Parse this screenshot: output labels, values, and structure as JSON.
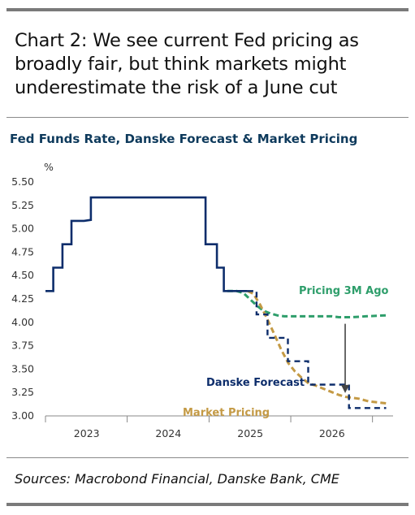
{
  "header": {
    "title": "Chart 2: We see current Fed pricing as broadly fair, but think markets might underestimate the risk of a June cut"
  },
  "footer": {
    "sources": "Sources: Macrobond Financial, Danske Bank, CME"
  },
  "colors": {
    "fed_funds": "#0d2d6b",
    "market_pricing": "#c49a45",
    "pricing_3m_ago": "#2e9e6b",
    "arrow": "#444444"
  },
  "chart_data": {
    "type": "line",
    "title": "Fed Funds Rate, Danske Forecast & Market Pricing",
    "ylabel": "%",
    "ylim": [
      3.0,
      5.5
    ],
    "yticks": [
      "5.50",
      "5.25",
      "5.00",
      "4.75",
      "4.50",
      "4.25",
      "4.00",
      "3.75",
      "3.50",
      "3.25",
      "3.00"
    ],
    "xlim": [
      "2022-07-01",
      "2026-10-01"
    ],
    "xticks": [
      {
        "label": "2023",
        "at": "2023-01-01"
      },
      {
        "label": "2024",
        "at": "2024-01-01"
      },
      {
        "label": "2025",
        "at": "2025-01-01"
      },
      {
        "label": "2026",
        "at": "2026-01-01"
      }
    ],
    "series": [
      {
        "style": "solid-step",
        "points": [
          [
            "2022-07-01",
            4.33
          ],
          [
            "2022-08-05",
            4.33
          ],
          [
            "2022-08-05",
            4.58
          ],
          [
            "2022-09-15",
            4.58
          ],
          [
            "2022-09-15",
            4.83
          ],
          [
            "2022-10-25",
            4.83
          ],
          [
            "2022-10-25",
            5.08
          ],
          [
            "2022-12-20",
            5.08
          ],
          [
            "2023-01-20",
            5.09
          ],
          [
            "2023-01-20",
            5.33
          ],
          [
            "2024-06-15",
            5.33
          ],
          [
            "2024-06-15",
            4.83
          ],
          [
            "2024-08-05",
            4.83
          ],
          [
            "2024-08-05",
            4.58
          ],
          [
            "2024-09-05",
            4.58
          ],
          [
            "2024-09-05",
            4.33
          ],
          [
            "2024-12-20",
            4.33
          ]
        ]
      },
      {
        "name": "Danske Forecast",
        "style": "dashed-step",
        "points": [
          [
            "2024-12-20",
            4.33
          ],
          [
            "2025-01-29",
            4.33
          ],
          [
            "2025-01-29",
            4.08
          ],
          [
            "2025-03-19",
            4.08
          ],
          [
            "2025-03-19",
            3.83
          ],
          [
            "2025-06-18",
            3.83
          ],
          [
            "2025-06-18",
            3.58
          ],
          [
            "2025-09-17",
            3.58
          ],
          [
            "2025-09-17",
            3.33
          ],
          [
            "2026-03-18",
            3.33
          ],
          [
            "2026-03-18",
            3.08
          ],
          [
            "2026-08-31",
            3.08
          ]
        ]
      },
      {
        "name": "Market Pricing",
        "style": "dashed",
        "points": [
          [
            "2024-12-20",
            4.33
          ],
          [
            "2025-01-15",
            4.3
          ],
          [
            "2025-02-15",
            4.18
          ],
          [
            "2025-03-20",
            4.02
          ],
          [
            "2025-04-20",
            3.86
          ],
          [
            "2025-05-20",
            3.7
          ],
          [
            "2025-06-20",
            3.56
          ],
          [
            "2025-07-20",
            3.47
          ],
          [
            "2025-08-20",
            3.4
          ],
          [
            "2025-09-20",
            3.34
          ],
          [
            "2025-10-20",
            3.32
          ],
          [
            "2025-11-20",
            3.29
          ],
          [
            "2025-12-31",
            3.25
          ],
          [
            "2026-02-01",
            3.22
          ],
          [
            "2026-03-01",
            3.2
          ],
          [
            "2026-05-01",
            3.18
          ],
          [
            "2026-06-15",
            3.15
          ],
          [
            "2026-08-31",
            3.13
          ]
        ]
      },
      {
        "name": "Pricing 3M Ago",
        "style": "dashed",
        "points": [
          [
            "2024-09-20",
            4.33
          ],
          [
            "2024-11-01",
            4.33
          ],
          [
            "2024-12-01",
            4.31
          ],
          [
            "2025-01-01",
            4.24
          ],
          [
            "2025-02-01",
            4.17
          ],
          [
            "2025-03-01",
            4.12
          ],
          [
            "2025-04-01",
            4.09
          ],
          [
            "2025-05-01",
            4.07
          ],
          [
            "2025-06-01",
            4.06
          ],
          [
            "2025-07-01",
            4.06
          ],
          [
            "2025-08-01",
            4.06
          ],
          [
            "2025-09-01",
            4.06
          ],
          [
            "2025-10-01",
            4.06
          ],
          [
            "2025-11-01",
            4.06
          ],
          [
            "2025-12-01",
            4.06
          ],
          [
            "2026-01-01",
            4.06
          ],
          [
            "2026-02-01",
            4.05
          ],
          [
            "2026-04-01",
            4.05
          ],
          [
            "2026-06-01",
            4.06
          ],
          [
            "2026-08-31",
            4.07
          ]
        ]
      }
    ],
    "annotations": [
      {
        "text": "Pricing 3M Ago",
        "series": "Pricing 3M Ago"
      },
      {
        "text": "Danske Forecast",
        "series": "Danske Forecast"
      },
      {
        "text": "Market Pricing",
        "series": "Market Pricing"
      }
    ],
    "arrow": {
      "from": [
        "2026-03-01",
        3.98
      ],
      "to": [
        "2026-03-01",
        3.24
      ]
    },
    "grid": false,
    "legend": "inline labels"
  }
}
